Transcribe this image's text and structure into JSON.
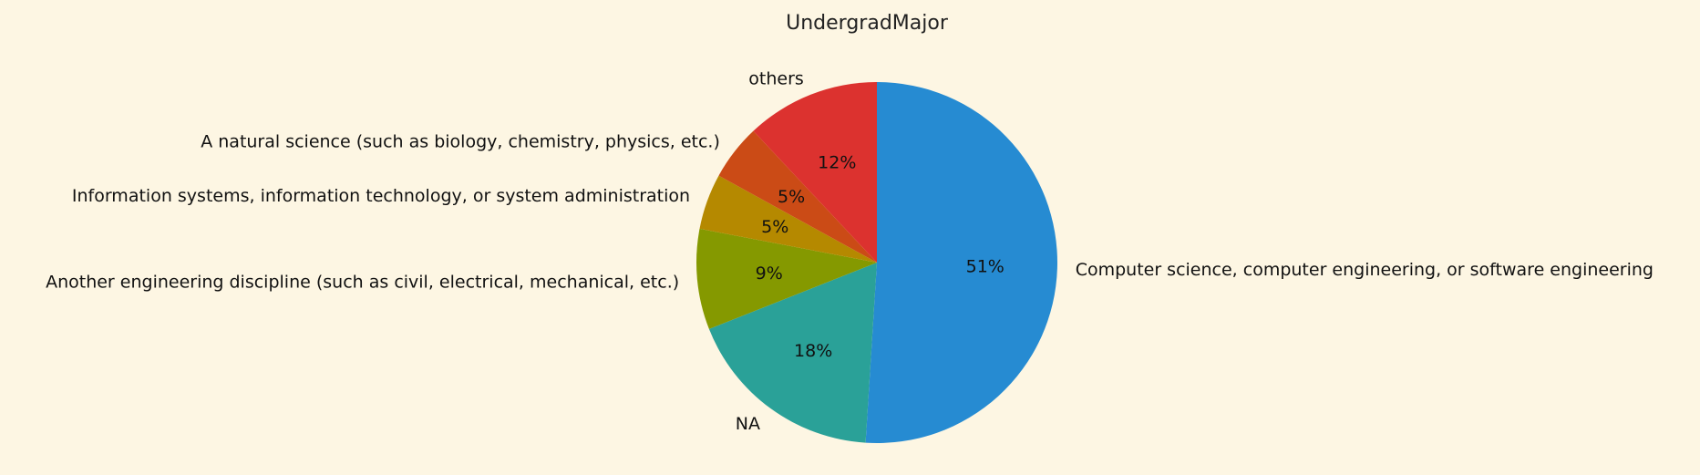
{
  "chart_data": {
    "type": "pie",
    "title": "UndergradMajor",
    "categories": [
      "Computer science, computer engineering, or software engineering",
      "NA",
      "Another engineering discipline (such as civil, electrical, mechanical, etc.)",
      "Information systems, information technology, or system administration",
      "A natural science (such as biology, chemistry, physics, etc.)",
      "others"
    ],
    "values": [
      51,
      18,
      9,
      5,
      5,
      12
    ],
    "percent_labels": [
      "51%",
      "18%",
      "9%",
      "5%",
      "5%",
      "12%"
    ],
    "colors": [
      "#268bd2",
      "#2aa198",
      "#859900",
      "#b58900",
      "#cb4b16",
      "#dc322f"
    ],
    "start_angle": "90 degrees (top)",
    "direction": "clockwise",
    "legend": "none"
  }
}
